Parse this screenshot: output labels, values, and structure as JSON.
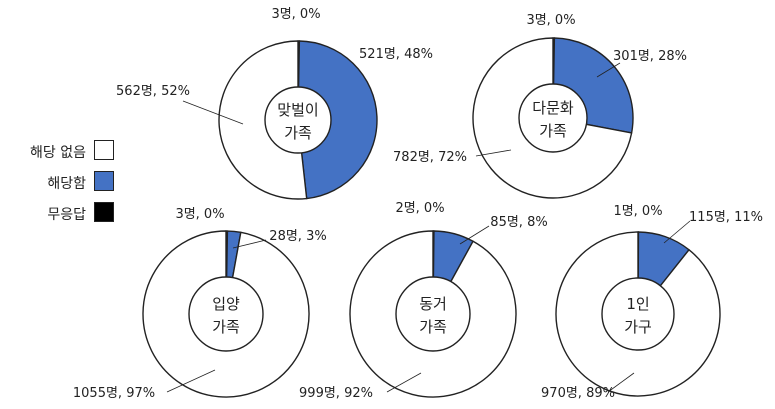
{
  "colors": {
    "none": "#ffffff",
    "applicable": "#4472c4",
    "no_answer": "#000000",
    "stroke": "#222222"
  },
  "legend": [
    {
      "label": "해당 없음",
      "key": "none"
    },
    {
      "label": "해당함",
      "key": "applicable"
    },
    {
      "label": "무응답",
      "key": "no_answer"
    }
  ],
  "chart_data": [
    {
      "type": "pie",
      "center_label": [
        "맞벌이",
        "가족"
      ],
      "categories": [
        "무응답",
        "해당함",
        "해당 없음"
      ],
      "values": [
        3,
        521,
        562
      ],
      "labels": [
        "3명, 0%",
        "521명, 48%",
        "562명, 52%"
      ]
    },
    {
      "type": "pie",
      "center_label": [
        "다문화",
        "가족"
      ],
      "categories": [
        "무응답",
        "해당함",
        "해당 없음"
      ],
      "values": [
        3,
        301,
        782
      ],
      "labels": [
        "3명, 0%",
        "301명, 28%",
        "782명, 72%"
      ]
    },
    {
      "type": "pie",
      "center_label": [
        "입양",
        "가족"
      ],
      "categories": [
        "무응답",
        "해당함",
        "해당 없음"
      ],
      "values": [
        3,
        28,
        1055
      ],
      "labels": [
        "3명, 0%",
        "28명, 3%",
        "1055명, 97%"
      ]
    },
    {
      "type": "pie",
      "center_label": [
        "동거",
        "가족"
      ],
      "categories": [
        "무응답",
        "해당함",
        "해당 없음"
      ],
      "values": [
        2,
        85,
        999
      ],
      "labels": [
        "2명, 0%",
        "85명, 8%",
        "999명, 92%"
      ]
    },
    {
      "type": "pie",
      "center_label": [
        "1인",
        "가구"
      ],
      "categories": [
        "무응답",
        "해당함",
        "해당 없음"
      ],
      "values": [
        1,
        115,
        970
      ],
      "labels": [
        "1명, 0%",
        "115명, 11%",
        "970명, 89%"
      ]
    }
  ]
}
